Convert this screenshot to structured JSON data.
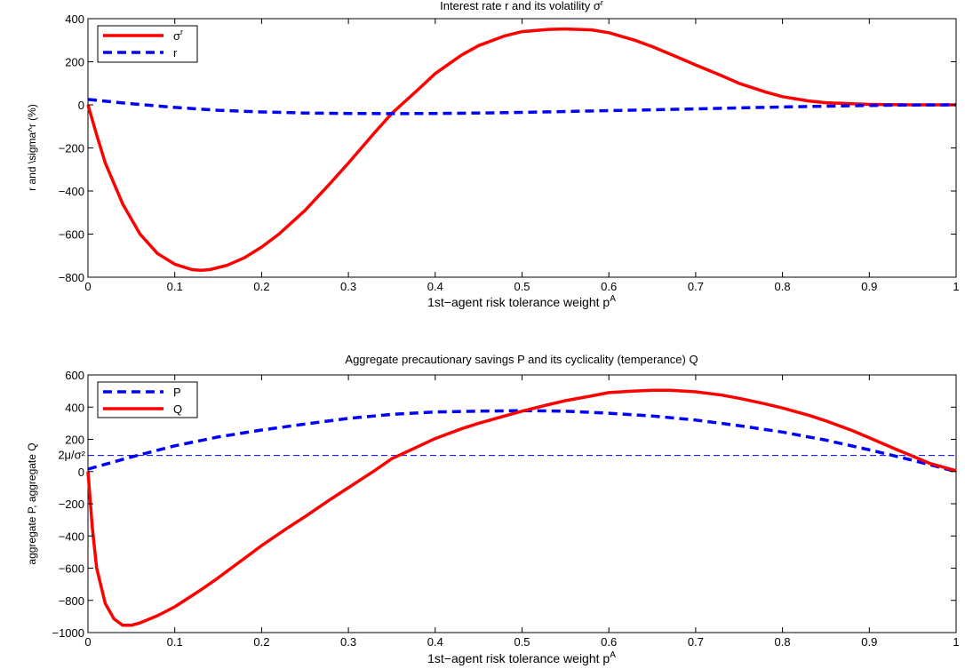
{
  "chart_data": [
    {
      "type": "line",
      "title": "Interest rate r and its volatility σ",
      "title_sup": "r",
      "xlabel": "1st−agent risk tolerance weight p",
      "xlabel_sup": "A",
      "ylabel": "r and \\sigma^r (%)",
      "xlim": [
        0,
        1
      ],
      "ylim": [
        -800,
        400
      ],
      "xticks": [
        "0",
        "0.1",
        "0.2",
        "0.3",
        "0.4",
        "0.5",
        "0.6",
        "0.7",
        "0.8",
        "0.9",
        "1"
      ],
      "yticks": [
        "−800",
        "−600",
        "−400",
        "−200",
        "0",
        "200",
        "400"
      ],
      "grid": false,
      "legend_position": "top-left",
      "series": [
        {
          "name": "σ",
          "name_sup": "r",
          "color": "#ff0000",
          "style": "solid",
          "x": [
            0,
            0.01,
            0.02,
            0.04,
            0.06,
            0.08,
            0.1,
            0.12,
            0.13,
            0.14,
            0.16,
            0.18,
            0.2,
            0.22,
            0.25,
            0.28,
            0.3,
            0.33,
            0.35,
            0.38,
            0.4,
            0.43,
            0.45,
            0.48,
            0.5,
            0.53,
            0.55,
            0.58,
            0.6,
            0.63,
            0.65,
            0.68,
            0.7,
            0.73,
            0.75,
            0.78,
            0.8,
            0.83,
            0.85,
            0.88,
            0.9,
            0.92,
            0.95,
            0.97,
            1.0
          ],
          "y": [
            0,
            -140,
            -270,
            -460,
            -600,
            -690,
            -740,
            -765,
            -768,
            -765,
            -745,
            -710,
            -660,
            -600,
            -490,
            -360,
            -270,
            -130,
            -40,
            70,
            145,
            230,
            275,
            320,
            340,
            350,
            352,
            348,
            335,
            300,
            270,
            220,
            185,
            135,
            100,
            60,
            38,
            18,
            10,
            5,
            2,
            1,
            0,
            0,
            0
          ]
        },
        {
          "name": "r",
          "color": "#0000ff",
          "style": "dashed",
          "x": [
            0,
            0.05,
            0.1,
            0.15,
            0.2,
            0.25,
            0.3,
            0.35,
            0.4,
            0.45,
            0.5,
            0.55,
            0.6,
            0.65,
            0.7,
            0.75,
            0.8,
            0.85,
            0.9,
            0.95,
            1.0
          ],
          "y": [
            25,
            5,
            -12,
            -25,
            -33,
            -38,
            -40,
            -41,
            -40,
            -38,
            -35,
            -31,
            -27,
            -23,
            -19,
            -14,
            -10,
            -6,
            -3,
            -1,
            0
          ]
        }
      ]
    },
    {
      "type": "line",
      "title": "Aggregate precautionary savings P and its cyclicality (temperance) Q",
      "xlabel": "1st−agent risk tolerance weight p",
      "xlabel_sup": "A",
      "ylabel": "aggregate P, aggregate Q",
      "xlim": [
        0,
        1
      ],
      "ylim": [
        -1000,
        600
      ],
      "xticks": [
        "0",
        "0.1",
        "0.2",
        "0.3",
        "0.4",
        "0.5",
        "0.6",
        "0.7",
        "0.8",
        "0.9",
        "1"
      ],
      "yticks": [
        "−1000",
        "−800",
        "−600",
        "−400",
        "−200",
        "0",
        "200",
        "400",
        "600"
      ],
      "grid": false,
      "legend_position": "top-left",
      "annotations": [
        {
          "text": "2μ/σ²",
          "y": 100
        }
      ],
      "reference_line": {
        "y": 100,
        "color": "#0000ff",
        "style": "dashed"
      },
      "series": [
        {
          "name": "P",
          "color": "#0000ff",
          "style": "dashed",
          "x": [
            0,
            0.05,
            0.1,
            0.15,
            0.2,
            0.25,
            0.3,
            0.35,
            0.4,
            0.45,
            0.5,
            0.55,
            0.6,
            0.65,
            0.7,
            0.75,
            0.8,
            0.85,
            0.9,
            0.95,
            1.0
          ],
          "y": [
            15,
            90,
            160,
            215,
            258,
            295,
            330,
            355,
            370,
            375,
            378,
            375,
            362,
            345,
            320,
            285,
            245,
            195,
            135,
            70,
            0
          ]
        },
        {
          "name": "Q",
          "color": "#ff0000",
          "style": "solid",
          "x": [
            0,
            0.005,
            0.01,
            0.02,
            0.03,
            0.04,
            0.05,
            0.06,
            0.08,
            0.1,
            0.13,
            0.15,
            0.18,
            0.2,
            0.23,
            0.25,
            0.28,
            0.3,
            0.33,
            0.35,
            0.38,
            0.4,
            0.43,
            0.45,
            0.48,
            0.5,
            0.53,
            0.55,
            0.58,
            0.6,
            0.63,
            0.65,
            0.67,
            0.7,
            0.73,
            0.75,
            0.78,
            0.8,
            0.83,
            0.85,
            0.88,
            0.9,
            0.93,
            0.95,
            0.97,
            1.0
          ],
          "y": [
            0,
            -350,
            -600,
            -820,
            -915,
            -955,
            -955,
            -940,
            -895,
            -840,
            -735,
            -660,
            -540,
            -460,
            -350,
            -280,
            -170,
            -100,
            5,
            80,
            155,
            205,
            265,
            300,
            345,
            375,
            415,
            440,
            470,
            490,
            500,
            505,
            505,
            495,
            475,
            455,
            420,
            395,
            350,
            315,
            255,
            210,
            140,
            95,
            50,
            5
          ]
        }
      ]
    }
  ]
}
